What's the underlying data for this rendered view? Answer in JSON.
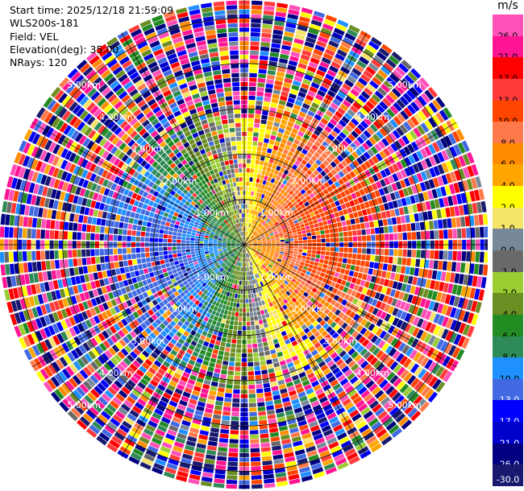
{
  "info": {
    "start_time": "Start time: 2025/12/18 21:59:09",
    "instrument": "WLS200s-181",
    "field": "Field: VEL",
    "elevation": "Elevation(deg): 35.00",
    "nrays": "NRays: 120"
  },
  "colorbar": {
    "unit": "m/s",
    "bins": [
      {
        "label": "26.0",
        "color": "#ff4fb8",
        "text": "#000000"
      },
      {
        "label": "21.0",
        "color": "#ff1493",
        "text": "#000000"
      },
      {
        "label": "17.0",
        "color": "#ff0000",
        "text": "#000000"
      },
      {
        "label": "13.0",
        "color": "#ff3a3a",
        "text": "#000000"
      },
      {
        "label": "10.0",
        "color": "#ff4500",
        "text": "#000000"
      },
      {
        "label": "8.0",
        "color": "#ff7a4a",
        "text": "#000000"
      },
      {
        "label": "6.0",
        "color": "#ff8c00",
        "text": "#000000"
      },
      {
        "label": "4.0",
        "color": "#ffa500",
        "text": "#000000"
      },
      {
        "label": "2.0",
        "color": "#ffff00",
        "text": "#000000"
      },
      {
        "label": "1.0",
        "color": "#f5e36a",
        "text": "#000000"
      },
      {
        "label": "0.0",
        "color": "#778899",
        "text": "#000000"
      },
      {
        "label": "-1.0",
        "color": "#696969",
        "text": "#000000"
      },
      {
        "label": "-2.0",
        "color": "#9acd32",
        "text": "#000000"
      },
      {
        "label": "-4.0",
        "color": "#6b8e23",
        "text": "#000000"
      },
      {
        "label": "-6.0",
        "color": "#228b22",
        "text": "#000000"
      },
      {
        "label": "-8.0",
        "color": "#2e8b57",
        "text": "#000000"
      },
      {
        "label": "-10.0",
        "color": "#1e90ff",
        "text": "#000000"
      },
      {
        "label": "-13.0",
        "color": "#4169e1",
        "text": "#ffffff"
      },
      {
        "label": "-17.0",
        "color": "#0000ff",
        "text": "#ffffff"
      },
      {
        "label": "-21.0",
        "color": "#0000cd",
        "text": "#ffffff"
      },
      {
        "label": "-26.0",
        "color": "#000080",
        "text": "#ffffff"
      },
      {
        "label": "-30.0",
        "color": "#191970",
        "text": "#ffffff"
      }
    ]
  },
  "chart_data": {
    "type": "heatmap",
    "field": "VEL",
    "nrays": 120,
    "elevation_deg": 35.0,
    "max_range_km": 5.4,
    "range_rings_km": [
      1.0,
      2.0,
      3.0,
      4.0,
      5.0
    ],
    "ring_labels": [
      "1.00km",
      "2.00km",
      "3.00km",
      "4.00km",
      "5.00km"
    ],
    "velocity_pattern": {
      "max_abs_mps": 12,
      "positive_toward_azimuth_deg": 80,
      "clean_range_km": 3.2
    },
    "vmin": -30,
    "vmax": 26
  }
}
